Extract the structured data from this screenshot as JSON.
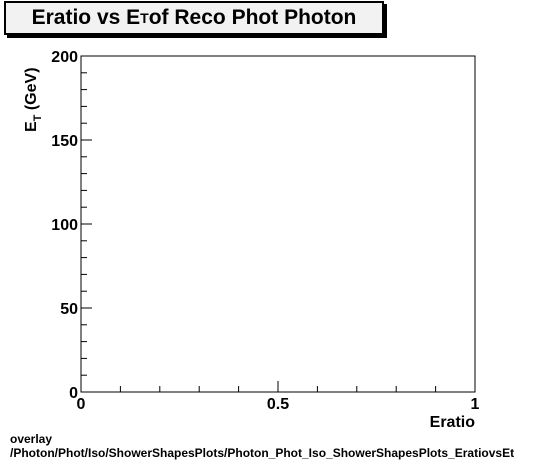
{
  "chart_data": {
    "type": "scatter",
    "title_main": "Eratio vs E",
    "title_sub": "T",
    "title_rest": " of Reco Phot Photon",
    "xlabel": "Eratio",
    "ylabel_main": "E",
    "ylabel_sub": "T",
    "ylabel_rest": " (GeV)",
    "xlim": [
      0,
      1
    ],
    "ylim": [
      0,
      200
    ],
    "x_ticks": [
      {
        "value": 0,
        "label": "0"
      },
      {
        "value": 0.5,
        "label": "0.5"
      },
      {
        "value": 1,
        "label": "1"
      }
    ],
    "y_ticks": [
      {
        "value": 0,
        "label": "0"
      },
      {
        "value": 50,
        "label": "50"
      },
      {
        "value": 100,
        "label": "100"
      },
      {
        "value": 150,
        "label": "150"
      },
      {
        "value": 200,
        "label": "200"
      }
    ],
    "points": [],
    "grid": false
  },
  "footer": {
    "line1": "overlay",
    "line2": "/Photon/Phot/Iso/ShowerShapesPlots/Photon_Phot_Iso_ShowerShapesPlots_EratiovsEt"
  }
}
